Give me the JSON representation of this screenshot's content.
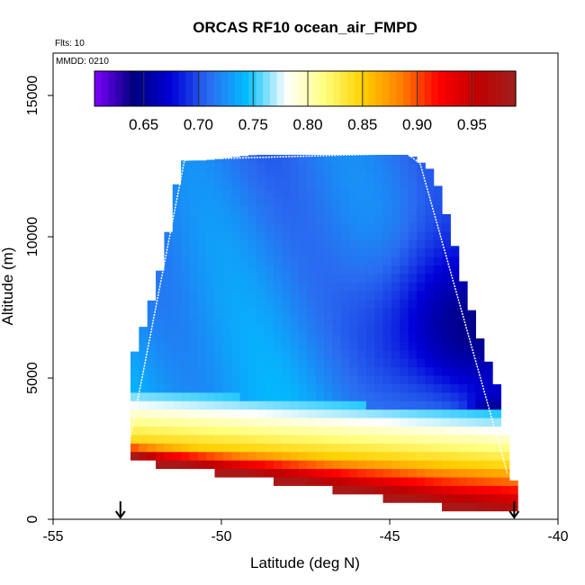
{
  "chart_data": {
    "type": "heatmap",
    "title": "ORCAS RF10 ocean_air_FMPD",
    "annotations": {
      "flights": "Flts: 10",
      "date": "MMDD: 0210"
    },
    "xlabel": "Latitude (deg N)",
    "ylabel": "Altitude (m)",
    "xlim": [
      -55,
      -40
    ],
    "ylim": [
      0,
      16500
    ],
    "x_ticks": [
      -55,
      -50,
      -45,
      -40
    ],
    "x_tick_labels": [
      "-55",
      "-50",
      "-45",
      "-40"
    ],
    "y_ticks": [
      0,
      5000,
      10000,
      15000
    ],
    "y_tick_labels": [
      "0",
      "5000",
      "10000",
      "15000"
    ],
    "colorbar": {
      "range": [
        0.605,
        0.99
      ],
      "ticks": [
        0.65,
        0.7,
        0.75,
        0.8,
        0.85,
        0.9,
        0.95
      ],
      "tick_labels": [
        "0.65",
        "0.70",
        "0.75",
        "0.80",
        "0.85",
        "0.90",
        "0.95"
      ],
      "palette": [
        "#7f00ff",
        "#00007f",
        "#0000d8",
        "#2a6cf0",
        "#00c0ff",
        "#ffffff",
        "#ffff80",
        "#ffd000",
        "#ff8000",
        "#ff0000",
        "#c00000",
        "#a02020"
      ]
    },
    "coverage": [
      {
        "lat": -52.7,
        "ymax": 5500
      },
      {
        "lat": -52.3,
        "ymax": 6900
      },
      {
        "lat": -51.9,
        "ymax": 8400
      },
      {
        "lat": -51.6,
        "ymax": 10000
      },
      {
        "lat": -51.2,
        "ymax": 12700
      },
      {
        "lat": -50.5,
        "ymax": 12700
      },
      {
        "lat": -49.0,
        "ymax": 12900
      },
      {
        "lat": -44.4,
        "ymax": 12900
      },
      {
        "lat": -43.7,
        "ymax": 12300
      },
      {
        "lat": -43.2,
        "ymax": 10300
      },
      {
        "lat": -42.8,
        "ymax": 8300
      },
      {
        "lat": -42.3,
        "ymax": 6300
      },
      {
        "lat": -41.8,
        "ymax": 4700
      },
      {
        "lat": -41.3,
        "ymax": 1200
      }
    ],
    "bottom_edge": [
      {
        "lat": -52.7,
        "ymin": 2300
      },
      {
        "lat": -51.5,
        "ymin": 2000
      },
      {
        "lat": -50.2,
        "ymin": 1800
      },
      {
        "lat": -47.8,
        "ymin": 1400
      },
      {
        "lat": -46.3,
        "ymin": 1100
      },
      {
        "lat": -44.5,
        "ymin": 800
      },
      {
        "lat": -43.0,
        "ymin": 500
      },
      {
        "lat": -41.3,
        "ymin": 300
      }
    ],
    "flight_track": [
      {
        "lat": -52.8,
        "alt": 2300
      },
      {
        "lat": -51.1,
        "alt": 12700
      },
      {
        "lat": -50.6,
        "alt": 12750
      },
      {
        "lat": -44.5,
        "alt": 12950
      },
      {
        "lat": -44.1,
        "alt": 12600
      },
      {
        "lat": -41.5,
        "alt": 1600
      }
    ],
    "markers": [
      {
        "lat": -53.0,
        "alt": 0
      },
      {
        "lat": -41.3,
        "alt": 0
      }
    ]
  }
}
